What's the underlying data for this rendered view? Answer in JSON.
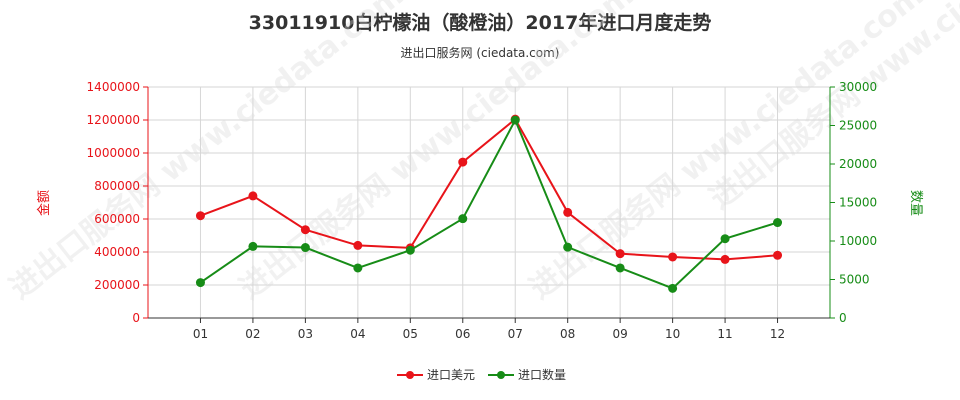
{
  "title": "33011910白柠檬油（酸橙油）2017年进口月度走势",
  "subtitle": "进出口服务网 (ciedata.com)",
  "watermark": "进出口服务网 www.ciedata.com",
  "chart_data": {
    "type": "line",
    "categories": [
      "01",
      "02",
      "03",
      "04",
      "05",
      "06",
      "07",
      "08",
      "09",
      "10",
      "11",
      "12"
    ],
    "y_left": {
      "label": "金额",
      "ticks": [
        "0",
        "200000",
        "400000",
        "600000",
        "800000",
        "1000000",
        "1200000",
        "1400000"
      ],
      "range": [
        0,
        1400000
      ],
      "color": "#e8141a"
    },
    "y_right": {
      "label": "数量",
      "ticks": [
        "0",
        "5000",
        "10000",
        "15000",
        "20000",
        "25000",
        "30000"
      ],
      "range": [
        0,
        30000
      ],
      "color": "#178c17"
    },
    "series": [
      {
        "name": "进口美元",
        "axis": "left",
        "color": "#e8141a",
        "values": [
          620000,
          740000,
          535000,
          440000,
          425000,
          945000,
          1205000,
          640000,
          390000,
          370000,
          355000,
          380000
        ]
      },
      {
        "name": "进口数量",
        "axis": "right",
        "color": "#178c17",
        "values": [
          4600,
          9300,
          9150,
          6500,
          8800,
          12900,
          25700,
          9200,
          6500,
          3850,
          10300,
          12400
        ]
      }
    ],
    "grid": true,
    "legend_position": "bottom"
  }
}
